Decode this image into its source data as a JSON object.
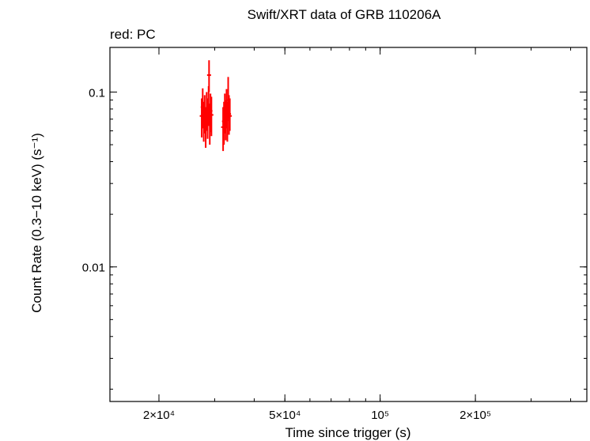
{
  "chart_data": {
    "type": "scatter",
    "title": "Swift/XRT data of GRB 110206A",
    "subtitle": "red: PC",
    "xlabel": "Time since trigger (s)",
    "ylabel": "Count Rate (0.3−10 keV) (s⁻¹)",
    "x_scale": "log",
    "y_scale": "log",
    "xlim": [
      14000,
      450000
    ],
    "ylim": [
      0.0017,
      0.18
    ],
    "grid": false,
    "x_ticks": [
      {
        "value": 20000,
        "label": "2×10⁴"
      },
      {
        "value": 50000,
        "label": "5×10⁴"
      },
      {
        "value": 100000,
        "label": "10⁵"
      },
      {
        "value": 200000,
        "label": "2×10⁵"
      }
    ],
    "y_ticks": [
      {
        "value": 0.1,
        "label": "0.1"
      },
      {
        "value": 0.01,
        "label": "0.01"
      }
    ],
    "series": [
      {
        "name": "PC",
        "color": "#ff0000",
        "points": [
          {
            "x": 27300,
            "y": 0.073,
            "y_low": 0.055,
            "y_high": 0.092
          },
          {
            "x": 27500,
            "y": 0.082,
            "y_low": 0.062,
            "y_high": 0.105
          },
          {
            "x": 27700,
            "y": 0.068,
            "y_low": 0.052,
            "y_high": 0.088
          },
          {
            "x": 27900,
            "y": 0.076,
            "y_low": 0.058,
            "y_high": 0.096
          },
          {
            "x": 28100,
            "y": 0.064,
            "y_low": 0.048,
            "y_high": 0.082
          },
          {
            "x": 28300,
            "y": 0.079,
            "y_low": 0.06,
            "y_high": 0.1
          },
          {
            "x": 28500,
            "y": 0.072,
            "y_low": 0.054,
            "y_high": 0.092
          },
          {
            "x": 28700,
            "y": 0.085,
            "y_low": 0.064,
            "y_high": 0.108
          },
          {
            "x": 28800,
            "y": 0.125,
            "y_low": 0.1,
            "y_high": 0.152
          },
          {
            "x": 28950,
            "y": 0.066,
            "y_low": 0.05,
            "y_high": 0.085
          },
          {
            "x": 29100,
            "y": 0.078,
            "y_low": 0.059,
            "y_high": 0.098
          },
          {
            "x": 29300,
            "y": 0.074,
            "y_low": 0.056,
            "y_high": 0.094
          },
          {
            "x": 31900,
            "y": 0.063,
            "y_low": 0.046,
            "y_high": 0.082
          },
          {
            "x": 32100,
            "y": 0.068,
            "y_low": 0.05,
            "y_high": 0.088
          },
          {
            "x": 32300,
            "y": 0.077,
            "y_low": 0.058,
            "y_high": 0.098
          },
          {
            "x": 32500,
            "y": 0.071,
            "y_low": 0.053,
            "y_high": 0.09
          },
          {
            "x": 32700,
            "y": 0.082,
            "y_low": 0.062,
            "y_high": 0.104
          },
          {
            "x": 32900,
            "y": 0.069,
            "y_low": 0.052,
            "y_high": 0.088
          },
          {
            "x": 33100,
            "y": 0.09,
            "y_low": 0.07,
            "y_high": 0.122
          },
          {
            "x": 33300,
            "y": 0.075,
            "y_low": 0.057,
            "y_high": 0.096
          },
          {
            "x": 33500,
            "y": 0.073,
            "y_low": 0.06,
            "y_high": 0.092
          }
        ]
      }
    ]
  }
}
